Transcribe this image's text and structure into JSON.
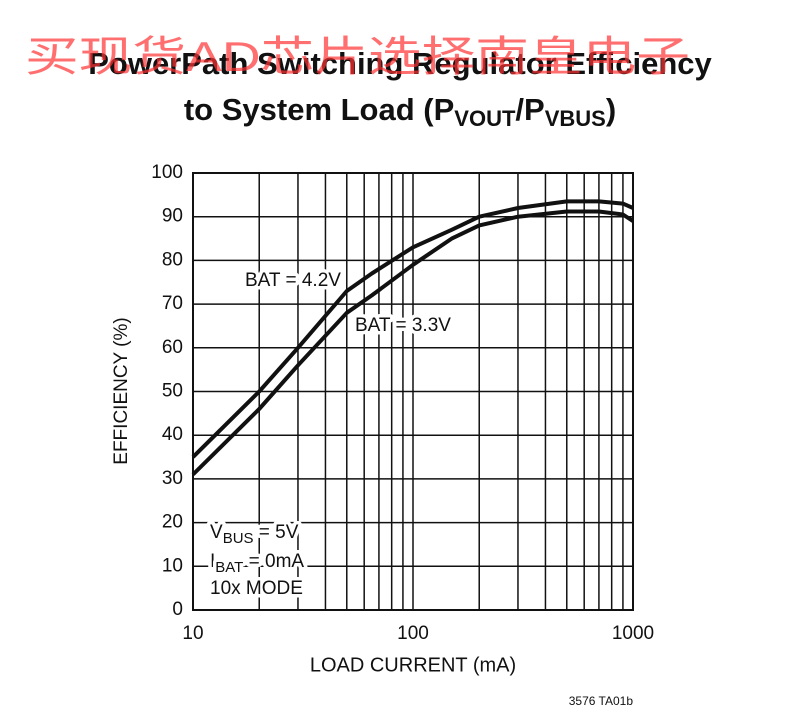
{
  "watermark": "买现货AD芯片选择南皇电子",
  "chart_data": {
    "type": "line",
    "title": {
      "line1": "PowerPath Switching Regulator Efficiency",
      "line2": [
        "to System Load (P",
        "VOUT",
        "/P",
        "VBUS",
        ")"
      ]
    },
    "x_label": "LOAD CURRENT (mA)",
    "y_label": "EFFICIENCY (%)",
    "x_log": true,
    "grid": true,
    "xlim": [
      10,
      1000
    ],
    "xticks": [
      10,
      100,
      1000
    ],
    "xminor_ticks": [
      20,
      30,
      40,
      50,
      60,
      70,
      80,
      90,
      200,
      300,
      400,
      500,
      600,
      700,
      800,
      900
    ],
    "ylim": [
      0,
      100
    ],
    "yticks": [
      0,
      10,
      20,
      30,
      40,
      50,
      60,
      70,
      80,
      90,
      100
    ],
    "x": [
      10,
      20,
      30,
      50,
      65,
      100,
      150,
      200,
      300,
      500,
      700,
      900,
      1000
    ],
    "series": [
      {
        "name": "BAT = 4.2V",
        "color": "#111111",
        "values": [
          35,
          50,
          60,
          73,
          77,
          83,
          87,
          90,
          92,
          93.5,
          93.5,
          93,
          92
        ]
      },
      {
        "name": "BAT = 3.3V",
        "color": "#111111",
        "values": [
          31,
          46,
          56,
          68,
          72,
          79,
          85,
          88,
          90,
          91.2,
          91.2,
          90.5,
          89
        ]
      }
    ],
    "annotations": [
      [
        "V",
        "BUS",
        " = 5V"
      ],
      [
        "I",
        "BAT",
        " = 0mA"
      ],
      [
        "10x MODE"
      ]
    ],
    "footnote": "3576 TA01b"
  }
}
